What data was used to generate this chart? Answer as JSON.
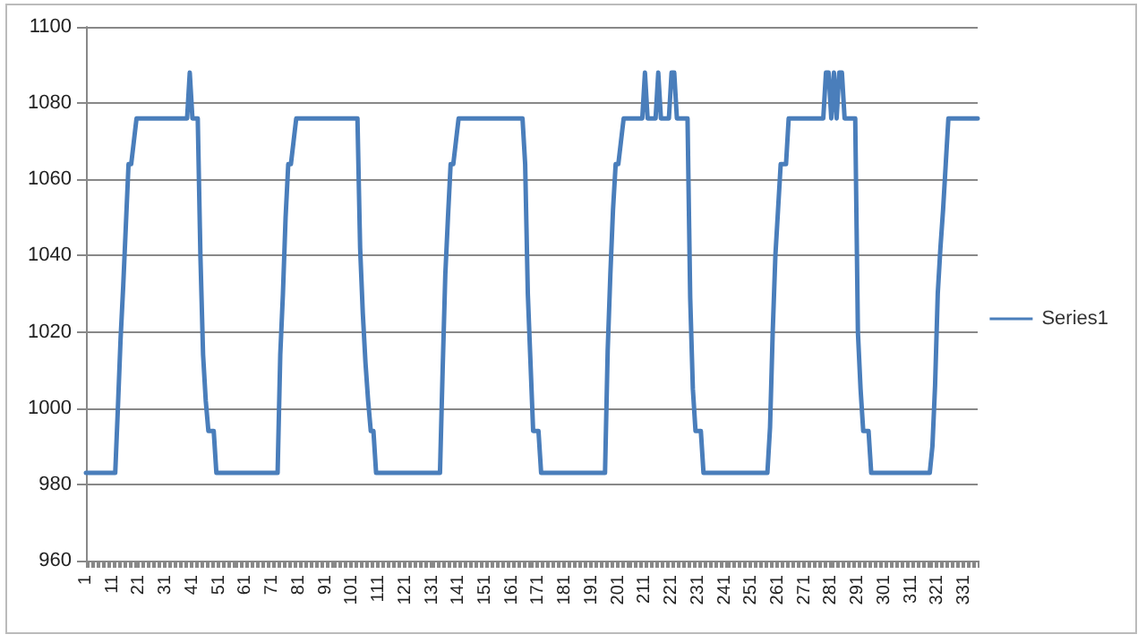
{
  "chart_data": {
    "type": "line",
    "categories": [
      "1",
      null,
      null,
      null,
      null,
      null,
      null,
      null,
      null,
      null,
      "11",
      null,
      null,
      null,
      null,
      null,
      null,
      null,
      null,
      null,
      "21",
      null,
      null,
      null,
      null,
      null,
      null,
      null,
      null,
      null,
      "31",
      null,
      null,
      null,
      null,
      null,
      null,
      null,
      null,
      null,
      "41",
      null,
      null,
      null,
      null,
      null,
      null,
      null,
      null,
      null,
      "51",
      null,
      null,
      null,
      null,
      null,
      null,
      null,
      null,
      null,
      "61",
      null,
      null,
      null,
      null,
      null,
      null,
      null,
      null,
      null,
      "71",
      null,
      null,
      null,
      null,
      null,
      null,
      null,
      null,
      null,
      "81",
      null,
      null,
      null,
      null,
      null,
      null,
      null,
      null,
      null,
      "91",
      null,
      null,
      null,
      null,
      null,
      null,
      null,
      null,
      null,
      "101",
      null,
      null,
      null,
      null,
      null,
      null,
      null,
      null,
      null,
      "111",
      null,
      null,
      null,
      null,
      null,
      null,
      null,
      null,
      null,
      "121",
      null,
      null,
      null,
      null,
      null,
      null,
      null,
      null,
      null,
      "131",
      null,
      null,
      null,
      null,
      null,
      null,
      null,
      null,
      null,
      "141",
      null,
      null,
      null,
      null,
      null,
      null,
      null,
      null,
      null,
      "151",
      null,
      null,
      null,
      null,
      null,
      null,
      null,
      null,
      null,
      "161",
      null,
      null,
      null,
      null,
      null,
      null,
      null,
      null,
      null,
      "171",
      null,
      null,
      null,
      null,
      null,
      null,
      null,
      null,
      null,
      "181",
      null,
      null,
      null,
      null,
      null,
      null,
      null,
      null,
      null,
      "191",
      null,
      null,
      null,
      null,
      null,
      null,
      null,
      null,
      null,
      "201",
      null,
      null,
      null,
      null,
      null,
      null,
      null,
      null,
      null,
      "211",
      null,
      null,
      null,
      null,
      null,
      null,
      null,
      null,
      null,
      "221",
      null,
      null,
      null,
      null,
      null,
      null,
      null,
      null,
      null,
      "231",
      null,
      null,
      null,
      null,
      null,
      null,
      null,
      null,
      null,
      "241",
      null,
      null,
      null,
      null,
      null,
      null,
      null,
      null,
      null,
      "251",
      null,
      null,
      null,
      null,
      null,
      null,
      null,
      null,
      null,
      "261",
      null,
      null,
      null,
      null,
      null,
      null,
      null,
      null,
      null,
      "271",
      null,
      null,
      null,
      null,
      null,
      null,
      null,
      null,
      null,
      "281",
      null,
      null,
      null,
      null,
      null,
      null,
      null,
      null,
      null,
      "291",
      null,
      null,
      null,
      null,
      null,
      null,
      null,
      null,
      null,
      "301",
      null,
      null,
      null,
      null,
      null,
      null,
      null,
      null,
      null,
      "311",
      null,
      null,
      null,
      null,
      null,
      null,
      null,
      null,
      null,
      "321",
      null,
      null,
      null,
      null,
      null,
      null,
      null,
      null,
      null,
      "331",
      null,
      null,
      null,
      null,
      null
    ],
    "series": [
      {
        "name": "Series1",
        "color": "#4a7ebb",
        "values": [
          983,
          983,
          983,
          983,
          983,
          983,
          983,
          983,
          983,
          983,
          983,
          983,
          1000,
          1018,
          1032,
          1048,
          1064,
          1064,
          1070,
          1076,
          1076,
          1076,
          1076,
          1076,
          1076,
          1076,
          1076,
          1076,
          1076,
          1076,
          1076,
          1076,
          1076,
          1076,
          1076,
          1076,
          1076,
          1076,
          1076,
          1088,
          1076,
          1076,
          1076,
          1040,
          1014,
          1002,
          994,
          994,
          994,
          983,
          983,
          983,
          983,
          983,
          983,
          983,
          983,
          983,
          983,
          983,
          983,
          983,
          983,
          983,
          983,
          983,
          983,
          983,
          983,
          983,
          983,
          983,
          983,
          1014,
          1030,
          1050,
          1064,
          1064,
          1070,
          1076,
          1076,
          1076,
          1076,
          1076,
          1076,
          1076,
          1076,
          1076,
          1076,
          1076,
          1076,
          1076,
          1076,
          1076,
          1076,
          1076,
          1076,
          1076,
          1076,
          1076,
          1076,
          1076,
          1076,
          1042,
          1025,
          1012,
          1002,
          994,
          994,
          983,
          983,
          983,
          983,
          983,
          983,
          983,
          983,
          983,
          983,
          983,
          983,
          983,
          983,
          983,
          983,
          983,
          983,
          983,
          983,
          983,
          983,
          983,
          983,
          983,
          1010,
          1035,
          1050,
          1064,
          1064,
          1070,
          1076,
          1076,
          1076,
          1076,
          1076,
          1076,
          1076,
          1076,
          1076,
          1076,
          1076,
          1076,
          1076,
          1076,
          1076,
          1076,
          1076,
          1076,
          1076,
          1076,
          1076,
          1076,
          1076,
          1076,
          1076,
          1064,
          1030,
          1012,
          994,
          994,
          994,
          983,
          983,
          983,
          983,
          983,
          983,
          983,
          983,
          983,
          983,
          983,
          983,
          983,
          983,
          983,
          983,
          983,
          983,
          983,
          983,
          983,
          983,
          983,
          983,
          983,
          1015,
          1035,
          1052,
          1064,
          1064,
          1070,
          1076,
          1076,
          1076,
          1076,
          1076,
          1076,
          1076,
          1076,
          1088,
          1076,
          1076,
          1076,
          1076,
          1088,
          1076,
          1076,
          1076,
          1076,
          1088,
          1088,
          1076,
          1076,
          1076,
          1076,
          1076,
          1029,
          1005,
          994,
          994,
          994,
          983,
          983,
          983,
          983,
          983,
          983,
          983,
          983,
          983,
          983,
          983,
          983,
          983,
          983,
          983,
          983,
          983,
          983,
          983,
          983,
          983,
          983,
          983,
          983,
          983,
          995,
          1020,
          1040,
          1052,
          1064,
          1064,
          1064,
          1076,
          1076,
          1076,
          1076,
          1076,
          1076,
          1076,
          1076,
          1076,
          1076,
          1076,
          1076,
          1076,
          1076,
          1088,
          1088,
          1076,
          1088,
          1076,
          1088,
          1088,
          1076,
          1076,
          1076,
          1076,
          1076,
          1020,
          1005,
          994,
          994,
          994,
          983,
          983,
          983,
          983,
          983,
          983,
          983,
          983,
          983,
          983,
          983,
          983,
          983,
          983,
          983,
          983,
          983,
          983,
          983,
          983,
          983,
          983,
          983,
          990,
          1006,
          1030,
          1042,
          1052,
          1064,
          1076,
          1076,
          1076,
          1076,
          1076,
          1076,
          1076,
          1076,
          1076,
          1076,
          1076,
          1076
        ]
      }
    ],
    "ylim": [
      960,
      1100
    ],
    "yticks": [
      960,
      980,
      1000,
      1020,
      1040,
      1060,
      1080,
      1100
    ],
    "grid": "y",
    "legend": "right",
    "marker": "none",
    "line_style": "solid"
  }
}
